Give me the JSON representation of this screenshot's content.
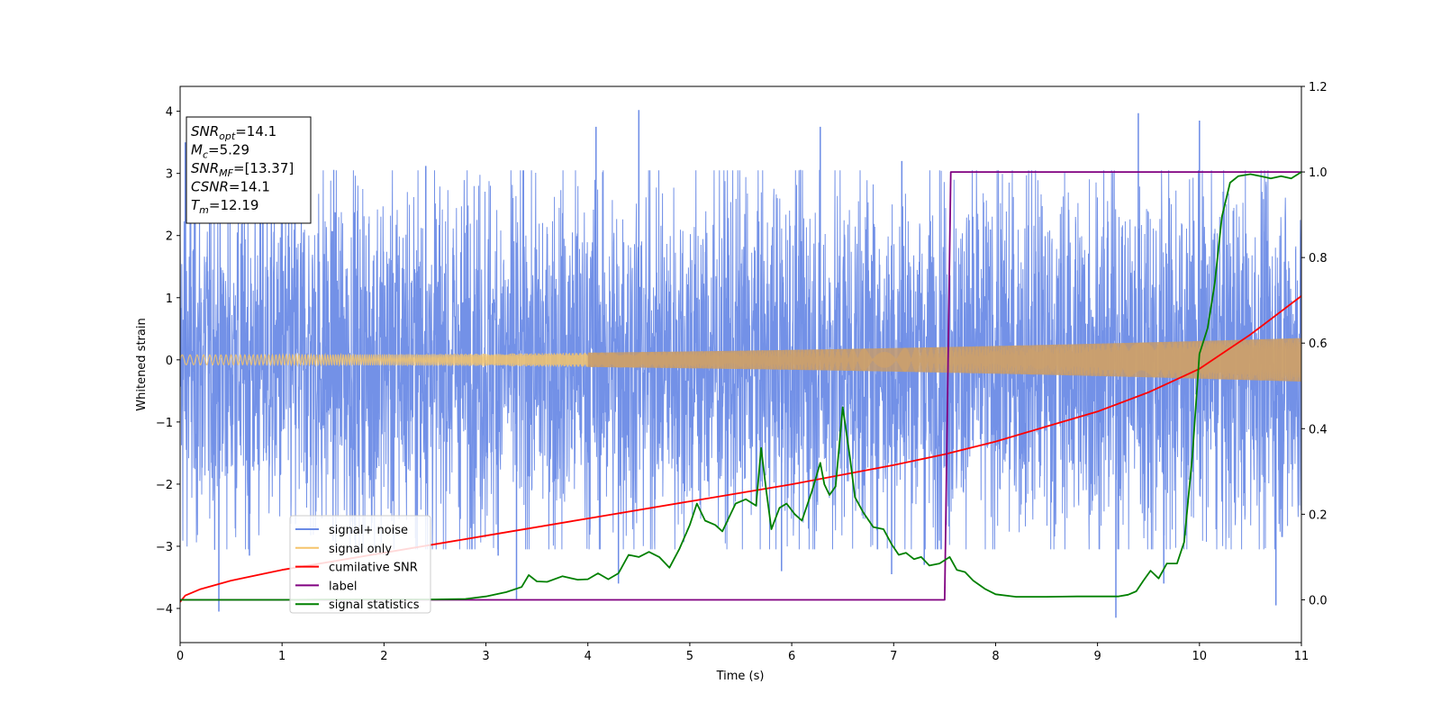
{
  "chart_data": {
    "type": "line",
    "xlabel": "Time (s)",
    "ylabel": "Whitened strain",
    "xlim": [
      0,
      11
    ],
    "ylim_left": [
      -4.55,
      4.4
    ],
    "ylim_right": [
      -0.1,
      1.2
    ],
    "x_ticks": [
      "0",
      "1",
      "2",
      "3",
      "4",
      "5",
      "6",
      "7",
      "8",
      "9",
      "10",
      "11"
    ],
    "y_ticks_left": [
      "−4",
      "−3",
      "−2",
      "−1",
      "0",
      "1",
      "2",
      "3",
      "4"
    ],
    "y_ticks_right": [
      "0.0",
      "0.2",
      "0.4",
      "0.6",
      "0.8",
      "1.0",
      "1.2"
    ],
    "grid": false,
    "legend_position": "lower-left",
    "info_box": {
      "lines": [
        {
          "var": "SNR",
          "sub": "opt",
          "value": "=14.1"
        },
        {
          "var": "M",
          "sub": "c",
          "value": "=5.29"
        },
        {
          "var": "SNR",
          "sub": "MF",
          "value": "=[13.37]"
        },
        {
          "var": "CSNR",
          "sub": "",
          "value": "=14.1"
        },
        {
          "var": "T",
          "sub": "m",
          "value": "=12.19"
        }
      ]
    },
    "series": [
      {
        "name": "signal+ noise",
        "color": "#6b8be6",
        "axis": "left",
        "kind": "noise",
        "envelope_typical": 2.5,
        "peaks": [
          {
            "x": 0.05,
            "y": 3.5
          },
          {
            "x": 0.38,
            "y": -4.05
          },
          {
            "x": 0.68,
            "y": -3.15
          },
          {
            "x": 2.41,
            "y": 3.12
          },
          {
            "x": 3.12,
            "y": -3.15
          },
          {
            "x": 3.3,
            "y": -3.85
          },
          {
            "x": 4.08,
            "y": 3.75
          },
          {
            "x": 4.3,
            "y": -3.6
          },
          {
            "x": 4.5,
            "y": 4.02
          },
          {
            "x": 5.9,
            "y": -3.4
          },
          {
            "x": 6.28,
            "y": 3.75
          },
          {
            "x": 6.98,
            "y": -3.45
          },
          {
            "x": 7.08,
            "y": 3.2
          },
          {
            "x": 7.3,
            "y": -3.3
          },
          {
            "x": 9.18,
            "y": -4.15
          },
          {
            "x": 9.4,
            "y": 3.97
          },
          {
            "x": 9.65,
            "y": -3.6
          },
          {
            "x": 10.0,
            "y": 3.85
          },
          {
            "x": 10.75,
            "y": -3.95
          }
        ]
      },
      {
        "name": "signal only",
        "color": "#f5c46b",
        "axis": "left",
        "kind": "chirp",
        "amplitude_start": 0.08,
        "amplitude_end": 0.35
      },
      {
        "name": "cumilative SNR",
        "color": "#ff0000",
        "axis": "right",
        "x": [
          0,
          0.05,
          0.2,
          0.5,
          1,
          2,
          3,
          4,
          5,
          6,
          7,
          7.5,
          8,
          8.5,
          9,
          9.5,
          10,
          10.5,
          11
        ],
        "y": [
          -0.005,
          0.01,
          0.025,
          0.045,
          0.07,
          0.11,
          0.15,
          0.19,
          0.23,
          0.27,
          0.315,
          0.34,
          0.37,
          0.405,
          0.44,
          0.485,
          0.54,
          0.62,
          0.71
        ]
      },
      {
        "name": "label",
        "color": "#800080",
        "axis": "right",
        "x": [
          0,
          7.5,
          7.56,
          11
        ],
        "y": [
          0,
          0,
          1,
          1
        ]
      },
      {
        "name": "signal statistics",
        "color": "#008000",
        "axis": "right",
        "x": [
          0,
          0.5,
          1,
          1.5,
          2,
          2.5,
          2.8,
          3.0,
          3.2,
          3.35,
          3.42,
          3.5,
          3.6,
          3.75,
          3.9,
          4.0,
          4.1,
          4.2,
          4.3,
          4.4,
          4.5,
          4.6,
          4.7,
          4.8,
          4.9,
          5.0,
          5.07,
          5.15,
          5.25,
          5.32,
          5.45,
          5.55,
          5.65,
          5.7,
          5.75,
          5.8,
          5.88,
          5.95,
          6.03,
          6.1,
          6.2,
          6.28,
          6.32,
          6.37,
          6.43,
          6.5,
          6.57,
          6.62,
          6.7,
          6.8,
          6.9,
          6.98,
          7.05,
          7.12,
          7.2,
          7.27,
          7.35,
          7.45,
          7.55,
          7.62,
          7.7,
          7.78,
          7.9,
          8.0,
          8.2,
          8.5,
          8.8,
          9.0,
          9.2,
          9.3,
          9.38,
          9.45,
          9.52,
          9.6,
          9.68,
          9.78,
          9.85,
          9.93,
          10.0,
          10.08,
          10.15,
          10.22,
          10.3,
          10.38,
          10.5,
          10.6,
          10.7,
          10.8,
          10.9,
          11.0
        ],
        "y": [
          0.0,
          0.0,
          0.0,
          0.001,
          0.001,
          0.001,
          0.002,
          0.008,
          0.018,
          0.03,
          0.058,
          0.043,
          0.042,
          0.055,
          0.047,
          0.048,
          0.062,
          0.048,
          0.062,
          0.105,
          0.1,
          0.112,
          0.1,
          0.075,
          0.12,
          0.175,
          0.225,
          0.185,
          0.175,
          0.16,
          0.225,
          0.235,
          0.22,
          0.355,
          0.255,
          0.165,
          0.215,
          0.225,
          0.2,
          0.185,
          0.255,
          0.32,
          0.27,
          0.245,
          0.265,
          0.45,
          0.335,
          0.24,
          0.205,
          0.17,
          0.165,
          0.13,
          0.105,
          0.11,
          0.095,
          0.1,
          0.08,
          0.085,
          0.1,
          0.07,
          0.065,
          0.045,
          0.025,
          0.013,
          0.007,
          0.007,
          0.008,
          0.008,
          0.008,
          0.012,
          0.02,
          0.045,
          0.068,
          0.05,
          0.085,
          0.085,
          0.135,
          0.335,
          0.575,
          0.635,
          0.74,
          0.895,
          0.975,
          0.99,
          0.995,
          0.99,
          0.985,
          0.99,
          0.985,
          1.0
        ]
      }
    ]
  }
}
